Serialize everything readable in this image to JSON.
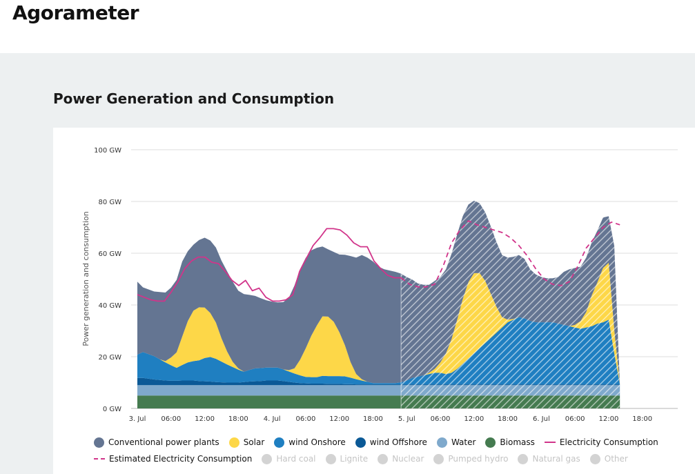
{
  "app": {
    "title": "Agorameter"
  },
  "section": {
    "title": "Power Generation and Consumption"
  },
  "chart_data": {
    "type": "area",
    "title": "",
    "xlabel": "",
    "ylabel": "Power generation and consumption",
    "ylim": [
      0,
      100
    ],
    "y_ticks": [
      "0 GW",
      "20 GW",
      "40 GW",
      "60 GW",
      "80 GW",
      "100 GW"
    ],
    "y_tick_values": [
      0,
      20,
      40,
      60,
      80,
      100
    ],
    "x_ticks": [
      "3. Jul",
      "06:00",
      "12:00",
      "18:00",
      "4. Jul",
      "06:00",
      "12:00",
      "18:00",
      "5. Jul",
      "06:00",
      "12:00",
      "18:00",
      "6. Jul",
      "06:00",
      "12:00",
      "18:00"
    ],
    "x_tick_hours": [
      0,
      6,
      12,
      18,
      24,
      30,
      36,
      42,
      48,
      54,
      60,
      66,
      72,
      78,
      84,
      90
    ],
    "x_hours": [
      0,
      1,
      2,
      3,
      4,
      5,
      6,
      7,
      8,
      9,
      10,
      11,
      12,
      13,
      14,
      15,
      16,
      17,
      18,
      19,
      20,
      21,
      22,
      23,
      24,
      25,
      26,
      27,
      28,
      29,
      30,
      31,
      32,
      33,
      34,
      35,
      36,
      37,
      38,
      39,
      40,
      41,
      42,
      43,
      44,
      45,
      46,
      47,
      48,
      49,
      50,
      51,
      52,
      53,
      54,
      55,
      56,
      57,
      58,
      59,
      60,
      61,
      62,
      63,
      64,
      65,
      66,
      67,
      68,
      69,
      70,
      71,
      72,
      73,
      74,
      75,
      76,
      77,
      78,
      79,
      80,
      81,
      82,
      83,
      84,
      85,
      86
    ],
    "forecast_from_hour": 47,
    "grid": true,
    "legend_position": "bottom",
    "series": [
      {
        "name": "Biomass",
        "color": "#457b50",
        "values": [
          5,
          5,
          5,
          5,
          5,
          5,
          5,
          5,
          5,
          5,
          5,
          5,
          5,
          5,
          5,
          5,
          5,
          5,
          5,
          5,
          5,
          5,
          5,
          5,
          5,
          5,
          5,
          5,
          5,
          5,
          5,
          5,
          5,
          5,
          5,
          5,
          5,
          5,
          5,
          5,
          5,
          5,
          5,
          5,
          5,
          5,
          5,
          5,
          5,
          5,
          5,
          5,
          5,
          5,
          5,
          5,
          5,
          5,
          5,
          5,
          5,
          5,
          5,
          5,
          5,
          5,
          5,
          5,
          5,
          5,
          5,
          5,
          5,
          5,
          5,
          5,
          5,
          5,
          5,
          5,
          5,
          5,
          5,
          5,
          5,
          5,
          5
        ]
      },
      {
        "name": "Water",
        "color": "#7fa9cc",
        "values": [
          4,
          4,
          4,
          4,
          4,
          4,
          4,
          4,
          4,
          4,
          4,
          4,
          4,
          4,
          4,
          4,
          4,
          4,
          4,
          4,
          4,
          4,
          4,
          4,
          4,
          4,
          4,
          4,
          4,
          4,
          4,
          4,
          4,
          4,
          4,
          4,
          4,
          4,
          4,
          4,
          4,
          4,
          4,
          4,
          4,
          4,
          4,
          4,
          4,
          4,
          4,
          4,
          4,
          4,
          4,
          4,
          4,
          4,
          4,
          4,
          4,
          4,
          4,
          4,
          4,
          4,
          4,
          4,
          4,
          4,
          4,
          4,
          4,
          4,
          4,
          4,
          4,
          4,
          4,
          4,
          4,
          4,
          4,
          4,
          4,
          4,
          4
        ]
      },
      {
        "name": "Wind Offshore",
        "color": "#0b5996",
        "values": [
          2.8,
          2.8,
          2.5,
          2.2,
          2,
          1.8,
          1.7,
          1.7,
          1.8,
          1.8,
          1.8,
          1.6,
          1.5,
          1.4,
          1.2,
          1.1,
          1,
          1,
          1,
          1.2,
          1.4,
          1.5,
          1.6,
          1.8,
          1.8,
          1.8,
          1.6,
          1.3,
          1,
          0.8,
          0.7,
          0.6,
          0.6,
          0.6,
          0.5,
          0.5,
          0.5,
          0.4,
          0.4,
          0.3,
          0.3,
          0.3,
          0.3,
          0.3,
          0.3,
          0.3,
          0.3,
          0.3,
          0.3,
          0.3,
          0.3,
          0.3,
          0.3,
          0.3,
          0.3,
          0.3,
          0.3,
          0.3,
          0.3,
          0.3,
          0.3,
          0.3,
          0.3,
          0.3,
          0.3,
          0.3,
          0.3,
          0.3,
          0.3,
          0.3,
          0.3,
          0.3,
          0.3,
          0.3,
          0.3,
          0.3,
          0.3,
          0.3,
          0.3,
          0.3,
          0.3,
          0.3,
          0.3,
          0.3,
          0.3,
          0.3,
          0.3
        ]
      },
      {
        "name": "Wind Onshore",
        "color": "#1f7fc1",
        "values": [
          9,
          10,
          9.5,
          9,
          8,
          7,
          6,
          5,
          6,
          7,
          7.5,
          8,
          9,
          9.5,
          9,
          8,
          7,
          6,
          5,
          4,
          4.5,
          5,
          5,
          5,
          5,
          5,
          4.5,
          4,
          3.5,
          3,
          2.5,
          2.5,
          2.5,
          3,
          3,
          3,
          3,
          3,
          2.5,
          2,
          1.5,
          1,
          0.5,
          0.5,
          0.5,
          0.5,
          0.5,
          0.8,
          1.5,
          2.5,
          3,
          3.5,
          4,
          4.5,
          4.5,
          4,
          4.5,
          6,
          8,
          10,
          12,
          14,
          16,
          18,
          20,
          22,
          24,
          25,
          26,
          25.5,
          24.5,
          24,
          24,
          24,
          24,
          23.5,
          23,
          22.5,
          22,
          21.5,
          22,
          22.5,
          23.5,
          24,
          25,
          12
        ]
      },
      {
        "name": "Solar",
        "color": "#fdd748",
        "values": [
          0,
          0,
          0,
          0,
          0,
          0.5,
          3,
          6,
          11,
          16,
          19.5,
          20.5,
          19.5,
          17,
          14,
          9,
          5,
          2,
          0.5,
          0,
          0,
          0,
          0,
          0,
          0,
          0,
          0,
          0.5,
          2,
          6,
          11,
          16,
          20,
          23,
          23,
          21,
          17,
          12,
          6,
          2,
          0.5,
          0,
          0,
          0,
          0,
          0,
          0,
          0,
          0,
          0,
          0,
          0,
          0.5,
          1.5,
          4,
          8,
          13,
          19,
          25,
          29.5,
          31,
          29,
          24,
          17,
          10,
          4,
          1,
          0.3,
          0,
          0,
          0,
          0,
          0,
          0,
          0,
          0,
          0,
          0,
          1,
          3,
          6,
          12,
          16,
          21,
          22,
          9
        ]
      },
      {
        "name": "Conventional power plants",
        "color": "#647592",
        "values": [
          28.2,
          25,
          25,
          25,
          26,
          26.5,
          27,
          28,
          29,
          27,
          25.5,
          26,
          27,
          28,
          29,
          30,
          31,
          31,
          30,
          30,
          29,
          28,
          27,
          26,
          25.5,
          25.2,
          26,
          28,
          32,
          35,
          35,
          33,
          30,
          27,
          26,
          27,
          30,
          35,
          41,
          45,
          48,
          48,
          47,
          45,
          44,
          43.5,
          43,
          42,
          40,
          38,
          36,
          35,
          34,
          34,
          33,
          32.5,
          33,
          33,
          32,
          30,
          28,
          27,
          26.5,
          26,
          25,
          24,
          24,
          24,
          24,
          23,
          20,
          18.5,
          17.5,
          17,
          17,
          18,
          20.5,
          22,
          22,
          21,
          21,
          20.5,
          20,
          19.5,
          18,
          32.5
        ]
      }
    ],
    "lines": [
      {
        "name": "Electricity Consumption",
        "color": "#d1348a",
        "style": "solid",
        "from_hour": 0,
        "to_hour": 47,
        "values": [
          44,
          43,
          42,
          41.5,
          41.5,
          45,
          49,
          54,
          57,
          58.5,
          58.5,
          56.5,
          56,
          53,
          49.5,
          47.5,
          49.5,
          45.5,
          46.5,
          43,
          41.5,
          41.5,
          42,
          44,
          53,
          58,
          63,
          66,
          69.5,
          69.5,
          69,
          67,
          64,
          62.5,
          62.5,
          57,
          54,
          51.5,
          50.5,
          50.5
        ]
      },
      {
        "name": "Estimated Electricity Consumption",
        "color": "#d1348a",
        "style": "dashed",
        "from_hour": 47,
        "to_hour": 86,
        "values": [
          50.5,
          48,
          47,
          47,
          48,
          55,
          64,
          69,
          72.5,
          71,
          70,
          69,
          68,
          66,
          63,
          59,
          54,
          50,
          48,
          47.5,
          49,
          55,
          62,
          66,
          70,
          72,
          71
        ]
      }
    ],
    "legend": [
      {
        "label": "Conventional power plants",
        "color": "#647592",
        "marker": "dot",
        "active": true
      },
      {
        "label": "Solar",
        "color": "#fdd748",
        "marker": "dot",
        "active": true
      },
      {
        "label": "wind Onshore",
        "color": "#1f7fc1",
        "marker": "dot",
        "active": true
      },
      {
        "label": "wind Offshore",
        "color": "#0b5996",
        "marker": "dot",
        "active": true
      },
      {
        "label": "Water",
        "color": "#7fa9cc",
        "marker": "dot",
        "active": true
      },
      {
        "label": "Biomass",
        "color": "#457b50",
        "marker": "dot",
        "active": true
      },
      {
        "label": "Electricity Consumption",
        "color": "#d1348a",
        "marker": "line",
        "active": true
      },
      {
        "label": "Estimated Electricity Consumption",
        "color": "#d1348a",
        "marker": "dashed",
        "active": true
      },
      {
        "label": "Hard coal",
        "color": "#d3d3d3",
        "marker": "dot",
        "active": false
      },
      {
        "label": "Lignite",
        "color": "#d3d3d3",
        "marker": "dot",
        "active": false
      },
      {
        "label": "Nuclear",
        "color": "#d3d3d3",
        "marker": "dot",
        "active": false
      },
      {
        "label": "Pumped hydro",
        "color": "#d3d3d3",
        "marker": "dot",
        "active": false
      },
      {
        "label": "Natural gas",
        "color": "#d3d3d3",
        "marker": "dot",
        "active": false
      },
      {
        "label": "Other",
        "color": "#d3d3d3",
        "marker": "dot",
        "active": false
      }
    ]
  }
}
